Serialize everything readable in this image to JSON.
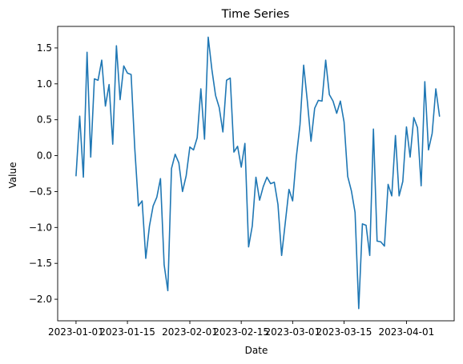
{
  "chart_data": {
    "type": "line",
    "title": "Time Series",
    "xlabel": "Date",
    "ylabel": "Value",
    "xlim": [
      "2022-12-27",
      "2023-04-14"
    ],
    "ylim": [
      -2.3,
      1.8
    ],
    "grid": false,
    "color": "#1f77b4",
    "x_ticks": [
      "2023-01-01",
      "2023-01-15",
      "2023-02-01",
      "2023-02-15",
      "2023-03-01",
      "2023-03-15",
      "2023-04-01"
    ],
    "y_ticks": [
      -2.0,
      -1.5,
      -1.0,
      -0.5,
      0.0,
      0.5,
      1.0,
      1.5
    ],
    "y_tick_labels": [
      "−2.0",
      "−1.5",
      "−1.0",
      "−0.5",
      "0.0",
      "0.5",
      "1.0",
      "1.5"
    ],
    "series": [
      {
        "x": [
          "2023-01-01",
          "2023-01-02",
          "2023-01-03",
          "2023-01-04",
          "2023-01-05",
          "2023-01-06",
          "2023-01-07",
          "2023-01-08",
          "2023-01-09",
          "2023-01-10",
          "2023-01-11",
          "2023-01-12",
          "2023-01-13",
          "2023-01-14",
          "2023-01-15",
          "2023-01-16",
          "2023-01-17",
          "2023-01-18",
          "2023-01-19",
          "2023-01-20",
          "2023-01-21",
          "2023-01-22",
          "2023-01-23",
          "2023-01-24",
          "2023-01-25",
          "2023-01-26",
          "2023-01-27",
          "2023-01-28",
          "2023-01-29",
          "2023-01-30",
          "2023-01-31",
          "2023-02-01",
          "2023-02-02",
          "2023-02-03",
          "2023-02-04",
          "2023-02-05",
          "2023-02-06",
          "2023-02-07",
          "2023-02-08",
          "2023-02-09",
          "2023-02-10",
          "2023-02-11",
          "2023-02-12",
          "2023-02-13",
          "2023-02-14",
          "2023-02-15",
          "2023-02-16",
          "2023-02-17",
          "2023-02-18",
          "2023-02-19",
          "2023-02-20",
          "2023-02-21",
          "2023-02-22",
          "2023-02-23",
          "2023-02-24",
          "2023-02-25",
          "2023-02-26",
          "2023-02-27",
          "2023-02-28",
          "2023-03-01",
          "2023-03-02",
          "2023-03-03",
          "2023-03-04",
          "2023-03-05",
          "2023-03-06",
          "2023-03-07",
          "2023-03-08",
          "2023-03-09",
          "2023-03-10",
          "2023-03-11",
          "2023-03-12",
          "2023-03-13",
          "2023-03-14",
          "2023-03-15",
          "2023-03-16",
          "2023-03-17",
          "2023-03-18",
          "2023-03-19",
          "2023-03-20",
          "2023-03-21",
          "2023-03-22",
          "2023-03-23",
          "2023-03-24",
          "2023-03-25",
          "2023-03-26",
          "2023-03-27",
          "2023-03-28",
          "2023-03-29",
          "2023-03-30",
          "2023-03-31",
          "2023-04-01",
          "2023-04-02",
          "2023-04-03",
          "2023-04-04",
          "2023-04-05",
          "2023-04-06",
          "2023-04-07",
          "2023-04-08",
          "2023-04-09",
          "2023-04-10"
        ],
        "y": [
          -0.28,
          0.55,
          -0.3,
          1.44,
          -0.02,
          1.07,
          1.05,
          1.33,
          0.69,
          0.99,
          0.16,
          1.53,
          0.78,
          1.25,
          1.15,
          1.13,
          0.1,
          -0.7,
          -0.63,
          -1.43,
          -0.98,
          -0.7,
          -0.58,
          -0.32,
          -1.52,
          -1.88,
          -0.18,
          0.02,
          -0.1,
          -0.5,
          -0.28,
          0.12,
          0.08,
          0.25,
          0.93,
          0.23,
          1.65,
          1.2,
          0.84,
          0.67,
          0.33,
          1.05,
          1.08,
          0.05,
          0.13,
          -0.16,
          0.17,
          -1.27,
          -0.98,
          -0.3,
          -0.62,
          -0.43,
          -0.3,
          -0.39,
          -0.37,
          -0.68,
          -1.39,
          -0.93,
          -0.47,
          -0.63,
          -0.02,
          0.43,
          1.26,
          0.76,
          0.2,
          0.66,
          0.77,
          0.76,
          1.33,
          0.85,
          0.76,
          0.59,
          0.76,
          0.47,
          -0.29,
          -0.49,
          -0.79,
          -2.13,
          -0.95,
          -0.97,
          -1.39,
          0.37,
          -1.19,
          -1.2,
          -1.26,
          -0.4,
          -0.56,
          0.28,
          -0.56,
          -0.36,
          0.4,
          -0.02,
          0.53,
          0.39,
          -0.42,
          1.03,
          0.08,
          0.31,
          0.93,
          0.55
        ]
      }
    ]
  }
}
